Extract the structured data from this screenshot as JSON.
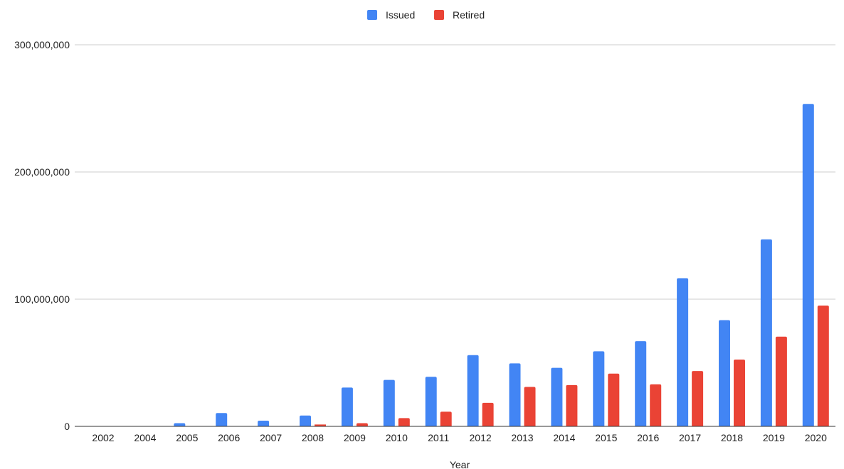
{
  "chart_data": {
    "type": "bar",
    "title": "",
    "xlabel": "Year",
    "ylabel": "",
    "categories": [
      "2002",
      "2004",
      "2005",
      "2006",
      "2007",
      "2008",
      "2009",
      "2010",
      "2011",
      "2012",
      "2013",
      "2014",
      "2015",
      "2016",
      "2017",
      "2018",
      "2019",
      "2020"
    ],
    "series": [
      {
        "name": "Issued",
        "color": "#4285F4",
        "values": [
          0,
          0,
          2500000,
          10500000,
          4500000,
          8500000,
          30500000,
          36500000,
          39000000,
          56000000,
          49500000,
          46000000,
          59000000,
          67000000,
          116500000,
          83500000,
          147000000,
          253500000
        ]
      },
      {
        "name": "Retired",
        "color": "#EA4335",
        "values": [
          0,
          0,
          0,
          0,
          0,
          1500000,
          2500000,
          6500000,
          11500000,
          18500000,
          31000000,
          32500000,
          41500000,
          33000000,
          43500000,
          52500000,
          70500000,
          95000000
        ]
      }
    ],
    "ylim": [
      0,
      300000000
    ],
    "yticks": [
      0,
      100000000,
      200000000,
      300000000
    ],
    "ytick_labels": [
      "0",
      "100,000,000",
      "200,000,000",
      "300,000,000"
    ],
    "grid": true,
    "legend_position": "top-center"
  }
}
